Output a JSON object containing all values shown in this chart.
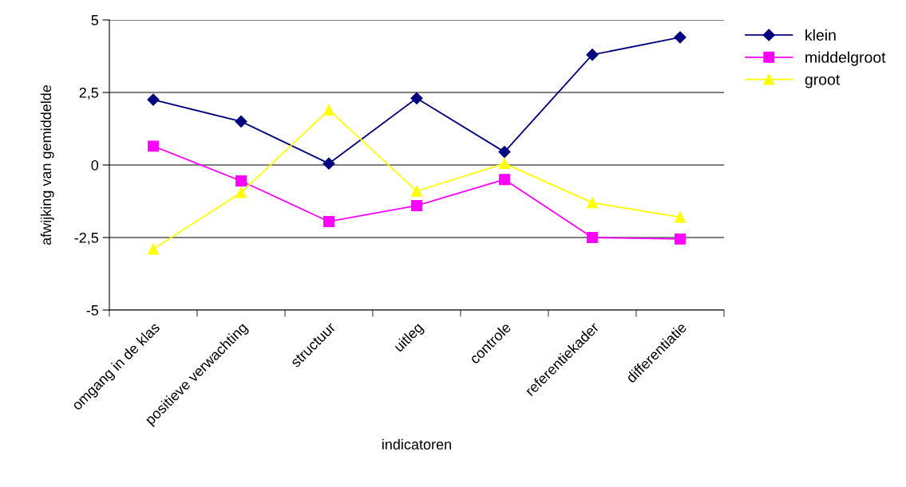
{
  "chart_data": {
    "type": "line",
    "xlabel": "indicatoren",
    "ylabel": "afwijking van gemiddelde",
    "categories": [
      "omgang in de klas",
      "positieve verwachting",
      "structuur",
      "uitleg",
      "controle",
      "referentiekader",
      "differentiatie"
    ],
    "series": [
      {
        "name": "klein",
        "color": "#000080",
        "marker": "diamond",
        "values": [
          2.25,
          1.5,
          0.05,
          2.3,
          0.45,
          3.8,
          4.4
        ]
      },
      {
        "name": "middelgroot",
        "color": "#ff00ff",
        "marker": "square",
        "values": [
          0.65,
          -0.55,
          -1.95,
          -1.4,
          -0.5,
          -2.5,
          -2.55
        ]
      },
      {
        "name": "groot",
        "color": "#ffff00",
        "marker": "triangle",
        "values": [
          -2.9,
          -0.95,
          1.9,
          -0.9,
          0.05,
          -1.3,
          -1.8
        ]
      }
    ],
    "ylim": [
      -5,
      5
    ],
    "yticks": [
      -5,
      {
        "value": -2.5,
        "label": "-2,5"
      },
      0,
      {
        "value": 2.5,
        "label": "2,5"
      },
      5
    ],
    "grid": "y",
    "legend": "right"
  }
}
